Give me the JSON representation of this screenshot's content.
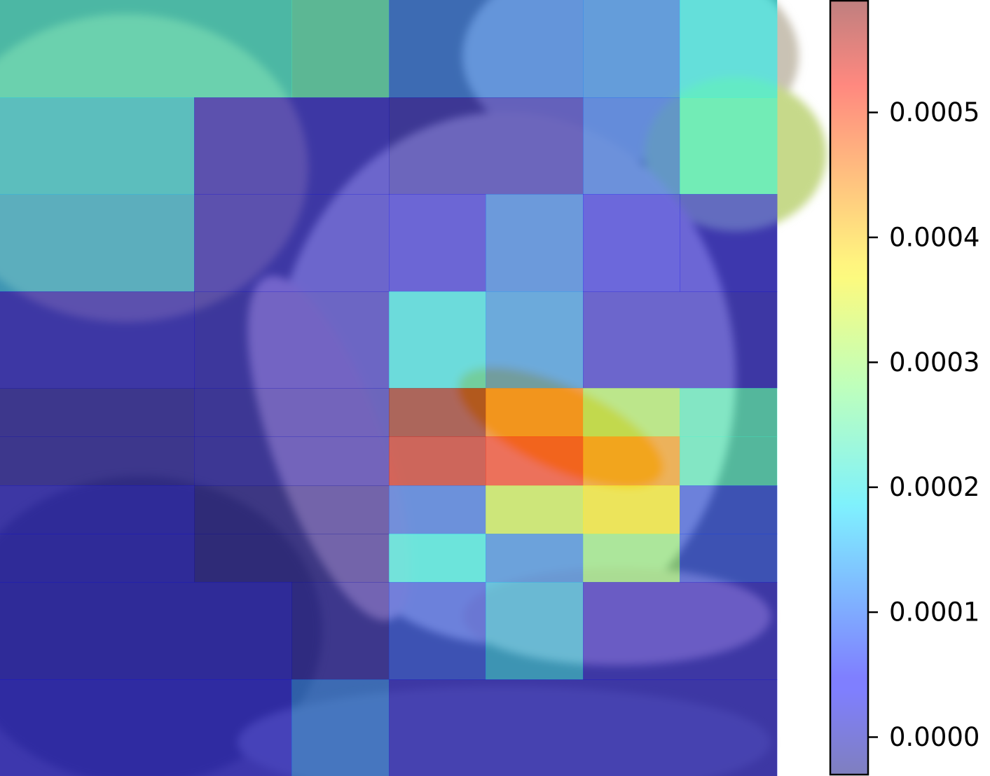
{
  "chart_data": {
    "type": "heatmap",
    "title": "",
    "xlabel": "",
    "ylabel": "",
    "grid": false,
    "axes_visible": false,
    "overlay": "attention heatmap over a photograph (blurred, tinted)",
    "colormap": "jet",
    "alpha": 0.5,
    "color_range": [
      -3e-05,
      0.00059
    ],
    "rows": [
      {
        "y": [
          0,
          1
        ],
        "cells": [
          {
            "x": [
              0,
              3
            ],
            "v": 0.00022
          },
          {
            "x": [
              3,
              4
            ],
            "v": 0.00024
          },
          {
            "x": [
              4,
              6
            ],
            "v": 0.00011
          },
          {
            "x": [
              6,
              7
            ],
            "v": 0.00012
          },
          {
            "x": [
              7,
              8
            ],
            "v": 0.0002
          }
        ]
      },
      {
        "y": [
          1,
          2
        ],
        "cells": [
          {
            "x": [
              0,
              2
            ],
            "v": 0.00018
          },
          {
            "x": [
              2,
              4
            ],
            "v": 3e-05
          },
          {
            "x": [
              4,
              6
            ],
            "v": 1e-05
          },
          {
            "x": [
              6,
              7
            ],
            "v": 0.0001
          },
          {
            "x": [
              7,
              8
            ],
            "v": 0.00022
          }
        ]
      },
      {
        "y": [
          2,
          3
        ],
        "cells": [
          {
            "x": [
              0,
              2
            ],
            "v": 0.00016
          },
          {
            "x": [
              2,
              4
            ],
            "v": 3e-05
          },
          {
            "x": [
              4,
              5
            ],
            "v": 4e-05
          },
          {
            "x": [
              5,
              6
            ],
            "v": 0.00011
          },
          {
            "x": [
              6,
              7
            ],
            "v": 5e-05
          },
          {
            "x": [
              7,
              8
            ],
            "v": 4e-05
          }
        ]
      },
      {
        "y": [
          3,
          4
        ],
        "cells": [
          {
            "x": [
              0,
              2
            ],
            "v": 3e-05
          },
          {
            "x": [
              2,
              4
            ],
            "v": 2e-05
          },
          {
            "x": [
              4,
              5
            ],
            "v": 0.00019
          },
          {
            "x": [
              5,
              6
            ],
            "v": 0.00013
          },
          {
            "x": [
              6,
              8
            ],
            "v": 3e-05
          }
        ]
      },
      {
        "y": [
          4,
          4.5
        ],
        "cells": [
          {
            "x": [
              0,
              2
            ],
            "v": 0.0
          },
          {
            "x": [
              2,
              4
            ],
            "v": 1e-05
          },
          {
            "x": [
              4,
              5
            ],
            "v": 0.00059
          },
          {
            "x": [
              5,
              6
            ],
            "v": 0.00044
          },
          {
            "x": [
              6,
              7
            ],
            "v": 0.0003
          },
          {
            "x": [
              7,
              8
            ],
            "v": 0.00023
          }
        ]
      },
      {
        "y": [
          4.5,
          5
        ],
        "cells": [
          {
            "x": [
              0,
              2
            ],
            "v": 0.0
          },
          {
            "x": [
              2,
              4
            ],
            "v": 1e-05
          },
          {
            "x": [
              4,
              5
            ],
            "v": 0.00055
          },
          {
            "x": [
              5,
              6
            ],
            "v": 0.0005
          },
          {
            "x": [
              6,
              7
            ],
            "v": 0.00042
          },
          {
            "x": [
              7,
              8
            ],
            "v": 0.00023
          }
        ]
      },
      {
        "y": [
          5,
          5.5
        ],
        "cells": [
          {
            "x": [
              0,
              2
            ],
            "v": 3e-05
          },
          {
            "x": [
              2,
              4
            ],
            "v": -1e-05
          },
          {
            "x": [
              4,
              5
            ],
            "v": 0.0001
          },
          {
            "x": [
              5,
              6
            ],
            "v": 0.00032
          },
          {
            "x": [
              6,
              7
            ],
            "v": 0.00036
          },
          {
            "x": [
              7,
              8
            ],
            "v": 8e-05
          }
        ]
      },
      {
        "y": [
          5.5,
          6
        ],
        "cells": [
          {
            "x": [
              0,
              2
            ],
            "v": 3e-05
          },
          {
            "x": [
              2,
              4
            ],
            "v": -1e-05
          },
          {
            "x": [
              4,
              5
            ],
            "v": 0.0002
          },
          {
            "x": [
              5,
              6
            ],
            "v": 0.00012
          },
          {
            "x": [
              6,
              7
            ],
            "v": 0.00028
          },
          {
            "x": [
              7,
              8
            ],
            "v": 8e-05
          }
        ]
      },
      {
        "y": [
          6,
          7
        ],
        "cells": [
          {
            "x": [
              0,
              3
            ],
            "v": 3e-05
          },
          {
            "x": [
              3,
              4
            ],
            "v": 0.0
          },
          {
            "x": [
              4,
              5
            ],
            "v": 8e-05
          },
          {
            "x": [
              5,
              6
            ],
            "v": 0.00016
          },
          {
            "x": [
              6,
              8
            ],
            "v": 3e-05
          }
        ]
      },
      {
        "y": [
          7,
          8
        ],
        "cells": [
          {
            "x": [
              0,
              3
            ],
            "v": 4e-05
          },
          {
            "x": [
              3,
              4
            ],
            "v": 0.00011
          },
          {
            "x": [
              4,
              8
            ],
            "v": 3e-05
          }
        ]
      }
    ],
    "colorbar": {
      "range": [
        -3e-05,
        0.00059
      ],
      "ticks": [
        0.0,
        0.0001,
        0.0002,
        0.0003,
        0.0004,
        0.0005
      ],
      "tick_labels": [
        "0.0000",
        "0.0001",
        "0.0002",
        "0.0003",
        "0.0004",
        "0.0005"
      ]
    }
  }
}
